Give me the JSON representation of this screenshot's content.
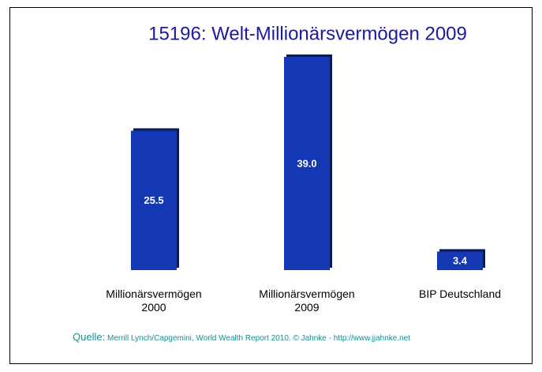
{
  "chart_data": {
    "type": "bar",
    "title": "15196: Welt-Millionärsvermögen 2009",
    "categories": [
      "Millionärsvermögen 2000",
      "Millionärsvermögen 2009",
      "BIP Deutschland"
    ],
    "values": [
      25.5,
      39.0,
      3.4
    ],
    "value_labels": [
      "25.5",
      "39.0",
      "3.4"
    ],
    "color": "#1438b4",
    "source_label": "Quelle:",
    "source": "Merrill Lynch/Capgemini, World Wealth Report 2010. © Jahnke - http://www.jjahnke.net"
  }
}
